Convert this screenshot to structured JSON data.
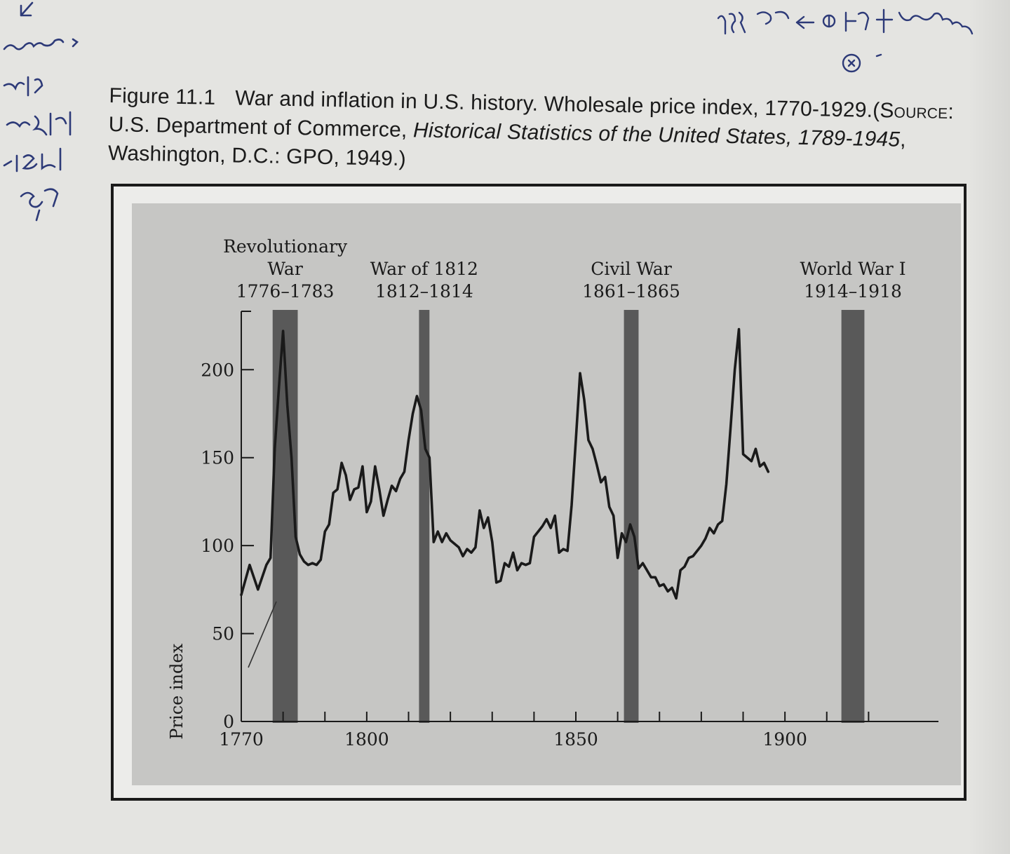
{
  "caption": {
    "figure_number": "Figure 11.1",
    "title": "War and inflation in U.S. history. Wholesale price index, 1770-1929.",
    "source_label": "Source:",
    "source_text_1": " U.S. Department of Commerce, ",
    "source_title": "Historical Statistics of the United States, 1789-1945",
    "source_text_2": ", Washington, D.C.: GPO, 1949.)"
  },
  "chart_data": {
    "type": "line",
    "title": "",
    "xlabel": "",
    "ylabel": "Price index",
    "xlim": [
      1770,
      1930
    ],
    "ylim": [
      0,
      230
    ],
    "x_ticks": [
      1770,
      1800,
      1850,
      1900
    ],
    "y_ticks": [
      0,
      50,
      100,
      150,
      200
    ],
    "grid": false,
    "legend": "none",
    "colors": {
      "line": "#1a1a1a",
      "war_band": "#595959",
      "plot_bg": "#c4c4c4"
    },
    "war_periods": [
      {
        "label_lines": [
          "Revolutionary",
          "War",
          "1776–1783"
        ],
        "start": 1777.5,
        "end": 1783.5
      },
      {
        "label_lines": [
          "War of 1812",
          "1812–1814"
        ],
        "start": 1812.5,
        "end": 1815
      },
      {
        "label_lines": [
          "Civil War",
          "1861–1865"
        ],
        "start": 1861.5,
        "end": 1865
      },
      {
        "label_lines": [
          "World War I",
          "1914–1918"
        ],
        "start": 1913.5,
        "end": 1919
      }
    ],
    "series": [
      {
        "name": "",
        "points": [
          [
            1770,
            72
          ],
          [
            1772,
            89
          ],
          [
            1774,
            75
          ],
          [
            1776,
            89
          ],
          [
            1777,
            93
          ],
          [
            1778,
            155
          ],
          [
            1779,
            190
          ],
          [
            1780,
            222
          ],
          [
            1781,
            180
          ],
          [
            1782,
            150
          ],
          [
            1783,
            105
          ],
          [
            1784,
            95
          ],
          [
            1785,
            91
          ],
          [
            1786,
            89
          ],
          [
            1787,
            90
          ],
          [
            1788,
            89
          ],
          [
            1789,
            92
          ],
          [
            1790,
            108
          ],
          [
            1791,
            112
          ],
          [
            1792,
            130
          ],
          [
            1793,
            132
          ],
          [
            1794,
            147
          ],
          [
            1795,
            140
          ],
          [
            1796,
            126
          ],
          [
            1797,
            132
          ],
          [
            1798,
            133
          ],
          [
            1799,
            145
          ],
          [
            1800,
            119
          ],
          [
            1801,
            125
          ],
          [
            1802,
            145
          ],
          [
            1803,
            132
          ],
          [
            1804,
            117
          ],
          [
            1805,
            126
          ],
          [
            1806,
            134
          ],
          [
            1807,
            131
          ],
          [
            1808,
            138
          ],
          [
            1809,
            142
          ],
          [
            1810,
            160
          ],
          [
            1811,
            175
          ],
          [
            1812,
            185
          ],
          [
            1813,
            177
          ],
          [
            1814,
            155
          ],
          [
            1815,
            150
          ],
          [
            1816,
            102
          ],
          [
            1817,
            108
          ],
          [
            1818,
            102
          ],
          [
            1819,
            107
          ],
          [
            1820,
            103
          ],
          [
            1821,
            101
          ],
          [
            1822,
            99
          ],
          [
            1823,
            94
          ],
          [
            1824,
            98
          ],
          [
            1825,
            96
          ],
          [
            1826,
            99
          ],
          [
            1827,
            120
          ],
          [
            1828,
            110
          ],
          [
            1829,
            116
          ],
          [
            1830,
            102
          ],
          [
            1831,
            79
          ],
          [
            1832,
            80
          ],
          [
            1833,
            90
          ],
          [
            1834,
            88
          ],
          [
            1835,
            96
          ],
          [
            1836,
            86
          ],
          [
            1837,
            90
          ],
          [
            1838,
            89
          ],
          [
            1839,
            90
          ],
          [
            1840,
            105
          ],
          [
            1841,
            108
          ],
          [
            1842,
            111
          ],
          [
            1843,
            115
          ],
          [
            1844,
            110
          ],
          [
            1845,
            117
          ],
          [
            1846,
            96
          ],
          [
            1847,
            98
          ],
          [
            1848,
            97
          ],
          [
            1849,
            123
          ],
          [
            1850,
            160
          ],
          [
            1851,
            198
          ],
          [
            1852,
            183
          ],
          [
            1853,
            160
          ],
          [
            1854,
            155
          ],
          [
            1855,
            146
          ],
          [
            1856,
            136
          ],
          [
            1857,
            139
          ],
          [
            1858,
            122
          ],
          [
            1859,
            117
          ],
          [
            1860,
            93
          ],
          [
            1861,
            107
          ],
          [
            1862,
            102
          ],
          [
            1863,
            112
          ],
          [
            1864,
            105
          ],
          [
            1865,
            87
          ],
          [
            1866,
            90
          ],
          [
            1867,
            86
          ],
          [
            1868,
            82
          ],
          [
            1869,
            82
          ],
          [
            1870,
            77
          ],
          [
            1871,
            78
          ],
          [
            1872,
            74
          ],
          [
            1873,
            76
          ],
          [
            1874,
            70
          ],
          [
            1875,
            86
          ],
          [
            1876,
            88
          ],
          [
            1877,
            93
          ],
          [
            1878,
            94
          ],
          [
            1879,
            97
          ],
          [
            1880,
            100
          ],
          [
            1881,
            104
          ],
          [
            1882,
            110
          ],
          [
            1883,
            107
          ],
          [
            1884,
            112
          ],
          [
            1885,
            114
          ],
          [
            1886,
            135
          ],
          [
            1887,
            167
          ],
          [
            1888,
            200
          ],
          [
            1889,
            223
          ],
          [
            1890,
            152
          ],
          [
            1891,
            150
          ],
          [
            1892,
            148
          ],
          [
            1893,
            155
          ],
          [
            1894,
            145
          ],
          [
            1895,
            147
          ],
          [
            1896,
            142
          ]
        ]
      }
    ]
  }
}
